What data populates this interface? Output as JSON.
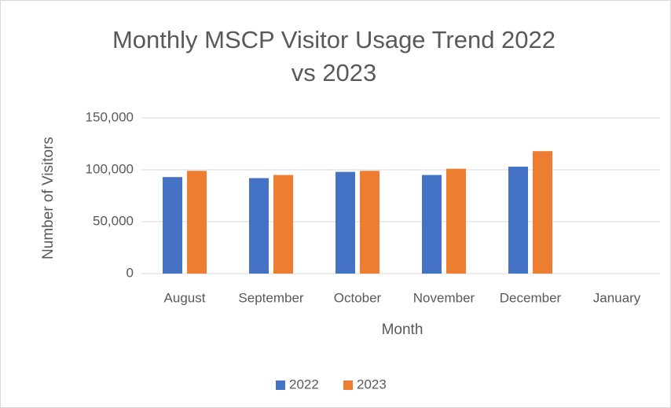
{
  "chart_data": {
    "type": "bar",
    "title": "Monthly MSCP Visitor Usage Trend 2022 vs 2023",
    "x_label": "Month",
    "y_label": "Number of Visitors",
    "categories": [
      "August",
      "September",
      "October",
      "November",
      "December",
      "January"
    ],
    "series": [
      {
        "name": "2022",
        "color": "#4472c4",
        "values": [
          93000,
          92000,
          98000,
          95000,
          103000,
          null
        ]
      },
      {
        "name": "2023",
        "color": "#ed7d31",
        "values": [
          99000,
          95000,
          99000,
          101000,
          118000,
          null
        ]
      }
    ],
    "ylim": [
      0,
      150000
    ],
    "yticks": [
      0,
      {
        "value": 50000,
        "label": "50,000"
      },
      {
        "value": 100000,
        "label": "100,000"
      },
      {
        "value": 150000,
        "label": "150,000"
      }
    ],
    "grid": true,
    "legend": "bottom"
  }
}
